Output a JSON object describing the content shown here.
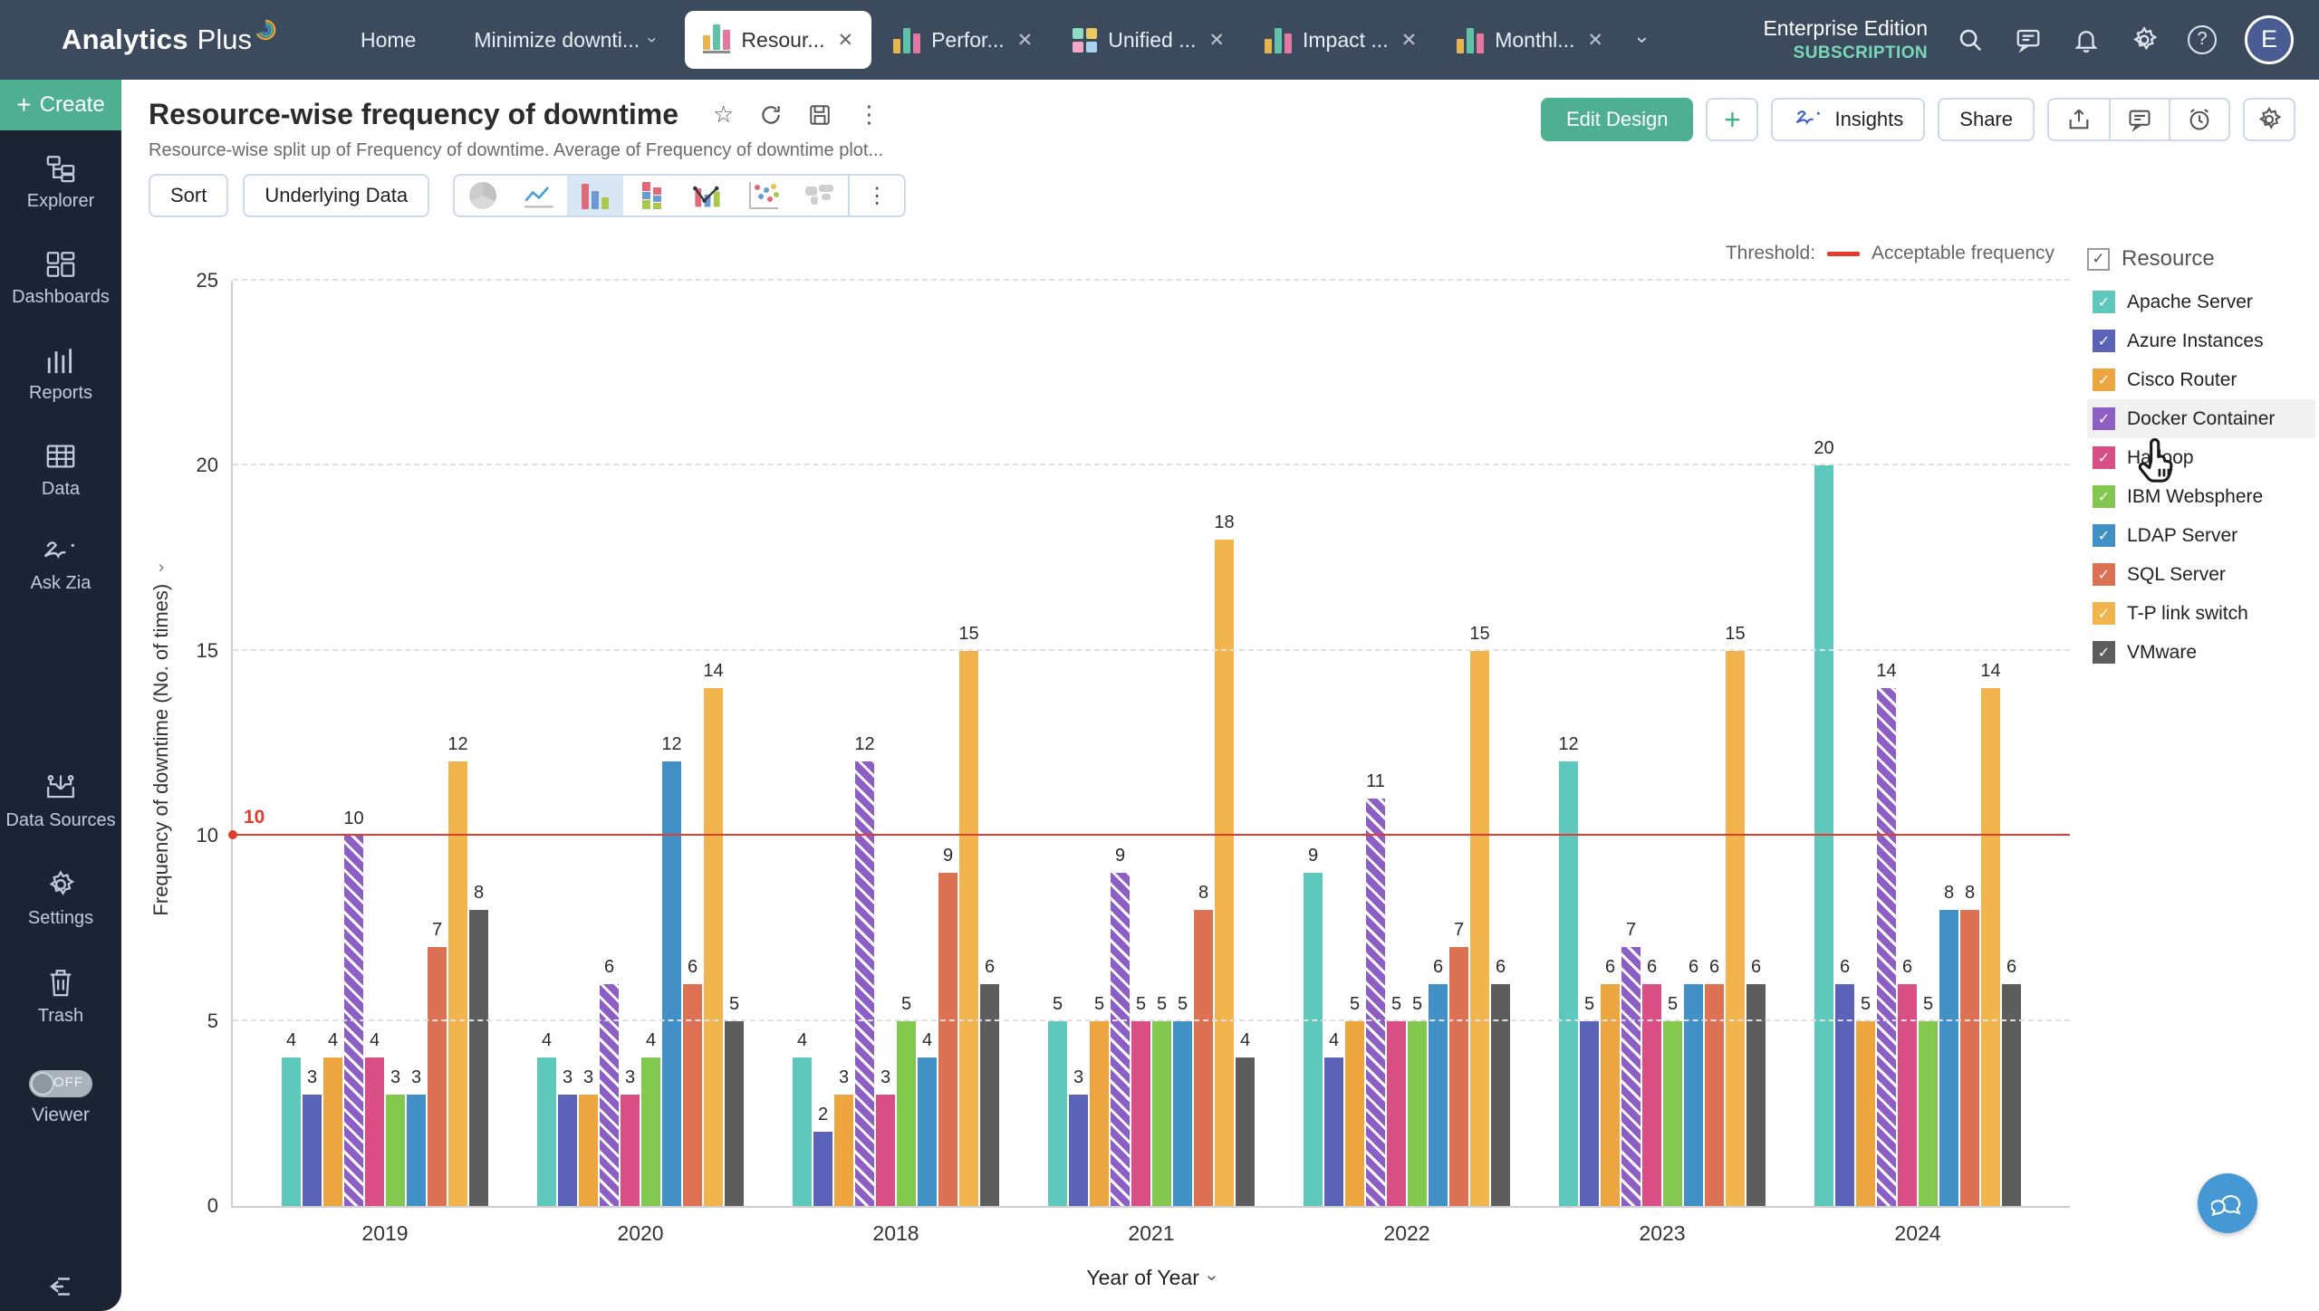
{
  "navbar": {
    "logo_text": "Analytics",
    "logo_text2": "Plus",
    "home_label": "Home",
    "workspace_label": "Minimize downti...",
    "tabs": [
      {
        "label": "Resour...",
        "icon": "bar-chart-icon",
        "active": true
      },
      {
        "label": "Perfor...",
        "icon": "bar-chart-icon",
        "active": false
      },
      {
        "label": "Unified ...",
        "icon": "grid-chart-icon",
        "active": false
      },
      {
        "label": "Impact ...",
        "icon": "bar-chart-icon",
        "active": false
      },
      {
        "label": "Monthl...",
        "icon": "bar-chart-icon",
        "active": false
      }
    ],
    "edition_line1": "Enterprise Edition",
    "edition_line2": "SUBSCRIPTION",
    "avatar_letter": "E"
  },
  "sidebar": {
    "create_label": "Create",
    "items": [
      {
        "label": "Explorer",
        "icon": "explorer-icon",
        "big_gap": false
      },
      {
        "label": "Dashboards",
        "icon": "dashboards-icon",
        "big_gap": false
      },
      {
        "label": "Reports",
        "icon": "reports-icon",
        "big_gap": false
      },
      {
        "label": "Data",
        "icon": "data-icon",
        "big_gap": false
      },
      {
        "label": "Ask Zia",
        "icon": "ask-zia-icon",
        "big_gap": false
      },
      {
        "label": "Data Sources",
        "icon": "data-sources-icon",
        "big_gap": true
      },
      {
        "label": "Settings",
        "icon": "settings-icon",
        "big_gap": false
      },
      {
        "label": "Trash",
        "icon": "trash-icon",
        "big_gap": false
      }
    ],
    "viewer_label": "Viewer",
    "viewer_toggle": "OFF"
  },
  "header": {
    "title": "Resource-wise frequency of downtime",
    "subtitle": "Resource-wise split up of Frequency of downtime. Average of Frequency of downtime plot...",
    "edit_design_label": "Edit Design",
    "plus_label": "+",
    "insights_label": "Insights",
    "share_label": "Share"
  },
  "toolbar": {
    "sort_label": "Sort",
    "underlying_data_label": "Underlying Data"
  },
  "chart_data": {
    "type": "bar",
    "categories": [
      "2019",
      "2020",
      "2018",
      "2021",
      "2022",
      "2023",
      "2024"
    ],
    "series": [
      {
        "name": "Apache Server",
        "color": "#5fc8bd",
        "hatched": false,
        "values": [
          4,
          4,
          4,
          5,
          9,
          12,
          20
        ]
      },
      {
        "name": "Azure Instances",
        "color": "#5a63b7",
        "hatched": false,
        "values": [
          3,
          3,
          2,
          3,
          4,
          5,
          6
        ]
      },
      {
        "name": "Cisco Router",
        "color": "#eda63f",
        "hatched": false,
        "values": [
          4,
          3,
          3,
          5,
          5,
          6,
          5
        ]
      },
      {
        "name": "Docker Container",
        "color": "#8d5fc4",
        "hatched": true,
        "values": [
          10,
          6,
          12,
          9,
          11,
          7,
          14
        ]
      },
      {
        "name": "Hadoop",
        "color": "#d94f85",
        "hatched": false,
        "values": [
          4,
          3,
          3,
          5,
          5,
          6,
          6
        ]
      },
      {
        "name": "IBM Websphere",
        "color": "#82c74e",
        "hatched": false,
        "values": [
          3,
          4,
          5,
          5,
          5,
          5,
          5
        ]
      },
      {
        "name": "LDAP Server",
        "color": "#4291c6",
        "hatched": false,
        "values": [
          3,
          12,
          4,
          5,
          6,
          6,
          8
        ]
      },
      {
        "name": "SQL Server",
        "color": "#dd7154",
        "hatched": false,
        "values": [
          7,
          6,
          9,
          8,
          7,
          6,
          8
        ]
      },
      {
        "name": "T-P link switch",
        "color": "#f2b44c",
        "hatched": false,
        "values": [
          12,
          14,
          15,
          18,
          15,
          15,
          14
        ]
      },
      {
        "name": "VMware",
        "color": "#5d5d5d",
        "hatched": false,
        "values": [
          8,
          5,
          6,
          4,
          6,
          6,
          6
        ]
      }
    ],
    "ylabel": "Frequency of downtime (No. of times)",
    "xlabel": "Year of Year",
    "ylim": [
      0,
      25
    ],
    "yticks": [
      0,
      5,
      10,
      15,
      20,
      25
    ],
    "grid": "dashed-horizontal",
    "legend_position": "right",
    "threshold": {
      "value": 10,
      "label": "Threshold:",
      "legend": "Acceptable frequency",
      "color": "#e23b30"
    }
  },
  "legend_panel": {
    "header": "Resource",
    "items": [
      {
        "name": "Apache Server",
        "color": "#5fc8bd",
        "checked": true,
        "highlighted": false
      },
      {
        "name": "Azure Instances",
        "color": "#5a63b7",
        "checked": true,
        "highlighted": false
      },
      {
        "name": "Cisco Router",
        "color": "#eda63f",
        "checked": true,
        "highlighted": false
      },
      {
        "name": "Docker Container",
        "color": "#8d5fc4",
        "checked": true,
        "highlighted": true
      },
      {
        "name": "Hadoop",
        "color": "#d94f85",
        "checked": true,
        "highlighted": false
      },
      {
        "name": "IBM Websphere",
        "color": "#82c74e",
        "checked": true,
        "highlighted": false
      },
      {
        "name": "LDAP Server",
        "color": "#4291c6",
        "checked": true,
        "highlighted": false
      },
      {
        "name": "SQL Server",
        "color": "#dd7154",
        "checked": true,
        "highlighted": false
      },
      {
        "name": "T-P link switch",
        "color": "#f2b44c",
        "checked": true,
        "highlighted": false
      },
      {
        "name": "VMware",
        "color": "#5d5d5d",
        "checked": true,
        "highlighted": false
      }
    ]
  }
}
